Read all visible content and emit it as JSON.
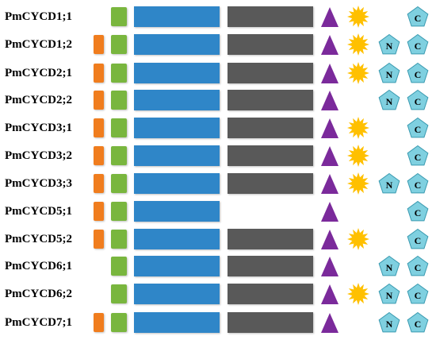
{
  "diagram": {
    "colors": {
      "orange_box": "#f07d1e",
      "green_box": "#79b63e",
      "blue_bar": "#2f86c8",
      "gray_bar": "#595959",
      "triangle": "#7b2a9b",
      "starburst": "#ffc000",
      "pentagon_fill": "#7fd0e0",
      "pentagon_stroke": "#3a9ab0"
    },
    "pentagon_letters": {
      "n": "N",
      "c": "C"
    },
    "rows": [
      {
        "label": "PmCYCD1;1",
        "orange": false,
        "green": true,
        "blue": true,
        "gray": true,
        "triangle": true,
        "star": true,
        "n": false,
        "c": true
      },
      {
        "label": "PmCYCD1;2",
        "orange": true,
        "green": true,
        "blue": true,
        "gray": true,
        "triangle": true,
        "star": true,
        "n": true,
        "c": true
      },
      {
        "label": "PmCYCD2;1",
        "orange": true,
        "green": true,
        "blue": true,
        "gray": true,
        "triangle": true,
        "star": true,
        "n": true,
        "c": true
      },
      {
        "label": "PmCYCD2;2",
        "orange": true,
        "green": true,
        "blue": true,
        "gray": true,
        "triangle": true,
        "star": false,
        "n": true,
        "c": true
      },
      {
        "label": "PmCYCD3;1",
        "orange": true,
        "green": true,
        "blue": true,
        "gray": true,
        "triangle": true,
        "star": true,
        "n": false,
        "c": true
      },
      {
        "label": "PmCYCD3;2",
        "orange": true,
        "green": true,
        "blue": true,
        "gray": true,
        "triangle": true,
        "star": true,
        "n": false,
        "c": true
      },
      {
        "label": "PmCYCD3;3",
        "orange": true,
        "green": true,
        "blue": true,
        "gray": true,
        "triangle": true,
        "star": true,
        "n": true,
        "c": true
      },
      {
        "label": "PmCYCD5;1",
        "orange": true,
        "green": true,
        "blue": true,
        "gray": false,
        "triangle": true,
        "star": false,
        "n": false,
        "c": true
      },
      {
        "label": "PmCYCD5;2",
        "orange": true,
        "green": true,
        "blue": true,
        "gray": true,
        "triangle": true,
        "star": true,
        "n": false,
        "c": true
      },
      {
        "label": "PmCYCD6;1",
        "orange": false,
        "green": true,
        "blue": true,
        "gray": true,
        "triangle": true,
        "star": false,
        "n": true,
        "c": true
      },
      {
        "label": "PmCYCD6;2",
        "orange": false,
        "green": true,
        "blue": true,
        "gray": true,
        "triangle": true,
        "star": true,
        "n": true,
        "c": true
      },
      {
        "label": "PmCYCD7;1",
        "orange": true,
        "green": true,
        "blue": true,
        "gray": true,
        "triangle": true,
        "star": false,
        "n": true,
        "c": true
      }
    ]
  }
}
